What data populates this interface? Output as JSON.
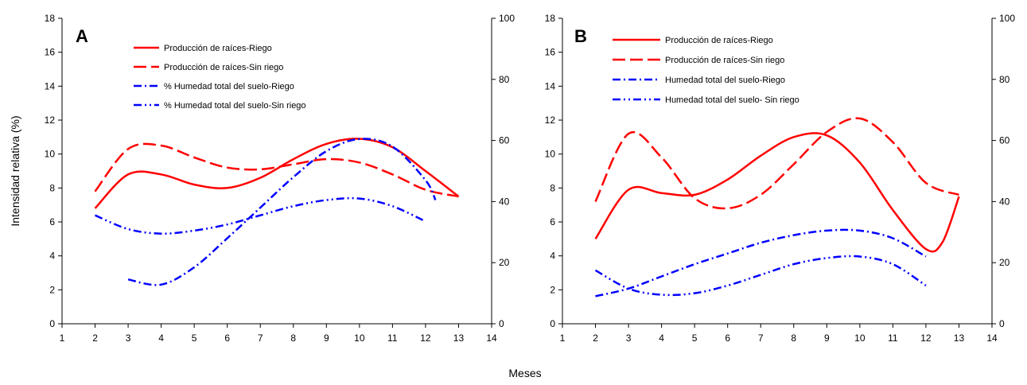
{
  "figure": {
    "ylabel": "Intensidad relativa (%)",
    "xlabel": "Meses"
  },
  "chart_data": [
    {
      "type": "line",
      "panel": "A",
      "x_ticks": [
        "1",
        "2",
        "3",
        "4",
        "5",
        "6",
        "7",
        "8",
        "9",
        "10",
        "11",
        "12",
        "13",
        "14"
      ],
      "y_ticks": [
        "0",
        "2",
        "4",
        "6",
        "8",
        "10",
        "12",
        "14",
        "16",
        "18"
      ],
      "y2_ticks": [
        "0",
        "20",
        "40",
        "60",
        "80",
        "100"
      ],
      "xlim": [
        1,
        14
      ],
      "ylim": [
        0,
        18
      ],
      "y2lim": [
        0,
        100
      ],
      "grid": false,
      "legend_position": "top-center",
      "series": [
        {
          "name": "Producción de raíces-Riego",
          "axis": "left",
          "color": "#ff0000",
          "dash": "solid",
          "x": [
            2,
            3,
            4,
            5,
            6,
            7,
            8,
            9,
            10,
            11,
            12,
            13
          ],
          "y": [
            6.8,
            8.8,
            8.8,
            8.2,
            8.0,
            8.6,
            9.7,
            10.6,
            10.9,
            10.4,
            9.0,
            7.5
          ]
        },
        {
          "name": "Producción de raíces-Sin riego",
          "axis": "left",
          "color": "#ff0000",
          "dash": "dashed",
          "x": [
            2,
            3,
            4,
            5,
            6,
            7,
            8,
            9,
            10,
            11,
            12,
            13
          ],
          "y": [
            7.8,
            10.3,
            10.5,
            9.8,
            9.2,
            9.1,
            9.4,
            9.7,
            9.5,
            8.8,
            7.9,
            7.5
          ]
        },
        {
          "name": "% Humedad total del suelo-Riego",
          "axis": "right",
          "color": "#0000ff",
          "dash": "dashdot",
          "x": [
            3,
            4,
            5,
            6,
            7,
            8,
            9,
            10,
            11,
            12,
            12.3
          ],
          "y": [
            14.5,
            12.8,
            18.5,
            28,
            38,
            48,
            56.5,
            60.5,
            58,
            47,
            40.5
          ]
        },
        {
          "name": "% Humedad total del suelo-Sin riego",
          "axis": "right",
          "color": "#0000ff",
          "dash": "dashdotdot",
          "x": [
            2,
            3,
            4,
            5,
            6,
            7,
            8,
            9,
            10,
            11,
            12
          ],
          "y": [
            35.5,
            31,
            29.5,
            30.5,
            32.5,
            35.5,
            38.5,
            40.5,
            41,
            38.5,
            33.5
          ]
        }
      ]
    },
    {
      "type": "line",
      "panel": "B",
      "x_ticks": [
        "1",
        "2",
        "3",
        "4",
        "5",
        "6",
        "7",
        "8",
        "9",
        "10",
        "11",
        "12",
        "13",
        "14"
      ],
      "y_ticks": [
        "0",
        "2",
        "4",
        "6",
        "8",
        "10",
        "12",
        "14",
        "16",
        "18"
      ],
      "y2_ticks": [
        "0",
        "20",
        "40",
        "60",
        "80",
        "100"
      ],
      "xlim": [
        1,
        14
      ],
      "ylim": [
        0,
        18
      ],
      "y2lim": [
        0,
        100
      ],
      "grid": false,
      "legend_position": "top-center",
      "series": [
        {
          "name": "Producción de raíces-Riego",
          "axis": "left",
          "color": "#ff0000",
          "dash": "solid",
          "x": [
            2,
            3,
            4,
            5,
            6,
            7,
            8,
            9,
            10,
            11,
            12,
            12.5,
            13
          ],
          "y": [
            5.0,
            7.9,
            7.7,
            7.6,
            8.5,
            9.9,
            11.0,
            11.1,
            9.5,
            6.7,
            4.4,
            4.8,
            7.5
          ]
        },
        {
          "name": "Producción de raíces-Sin riego",
          "axis": "left",
          "color": "#ff0000",
          "dash": "dashed",
          "x": [
            2,
            3,
            4,
            5,
            6,
            7,
            8,
            9,
            10,
            11,
            12,
            13
          ],
          "y": [
            7.2,
            11.2,
            9.8,
            7.4,
            6.8,
            7.6,
            9.4,
            11.3,
            12.1,
            10.7,
            8.3,
            7.6
          ]
        },
        {
          "name": "Humedad total del suelo-Riego",
          "axis": "right",
          "color": "#0000ff",
          "dash": "dashdot",
          "x": [
            2,
            3,
            4,
            5,
            6,
            7,
            8,
            9,
            10,
            11,
            12
          ],
          "y": [
            9,
            11.5,
            15.5,
            19.5,
            23,
            26.5,
            29,
            30.5,
            30.5,
            28,
            22
          ]
        },
        {
          "name": "Humedad total del suelo- Sin riego",
          "axis": "right",
          "color": "#0000ff",
          "dash": "dashdotdot",
          "x": [
            2,
            3,
            4,
            5,
            6,
            7,
            8,
            9,
            10,
            11,
            12
          ],
          "y": [
            17.5,
            11.5,
            9.5,
            10,
            12.5,
            16,
            19.5,
            21.5,
            22,
            19.5,
            12.5
          ]
        }
      ]
    }
  ]
}
